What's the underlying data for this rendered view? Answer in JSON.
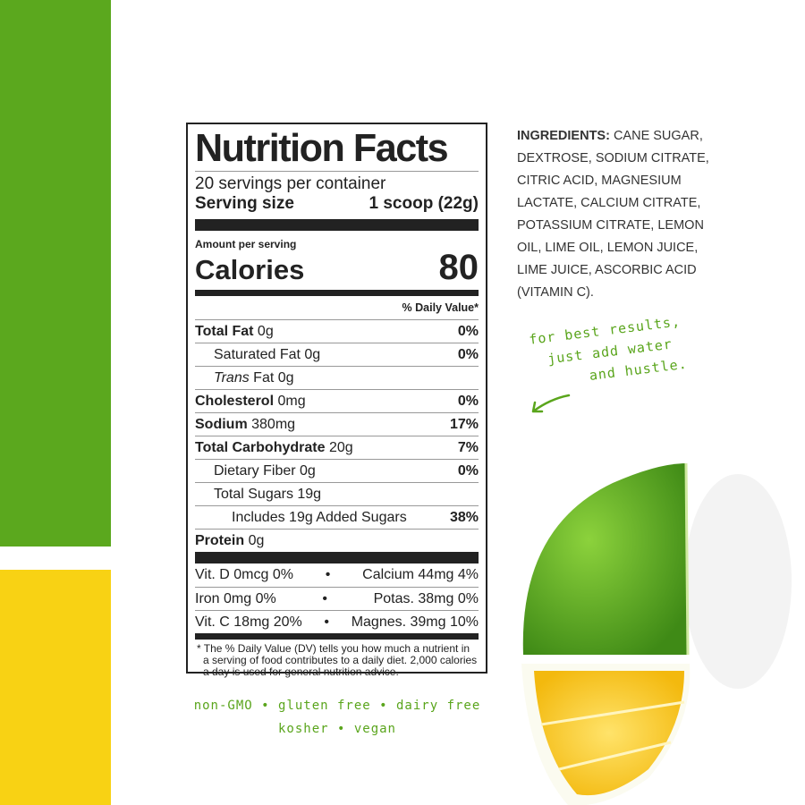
{
  "colors": {
    "green": "#5ba81e",
    "yellow": "#f8d214",
    "handwriting": "#5aa51c"
  },
  "label": {
    "title": "Nutrition Facts",
    "servings": "20 servings per container",
    "serving_size_label": "Serving size",
    "serving_size_value": "1 scoop (22g)",
    "amount_per_serving": "Amount per serving",
    "calories_label": "Calories",
    "calories_value": "80",
    "daily_value_header": "% Daily Value*",
    "rows": [
      {
        "bold": "Total Fat",
        "amount": " 0g",
        "dv": "0%"
      },
      {
        "bold": "",
        "amount": "Saturated Fat 0g",
        "dv": "0%"
      },
      {
        "italic": "Trans",
        "amount": " Fat 0g",
        "dv": ""
      },
      {
        "bold": "Cholesterol",
        "amount": " 0mg",
        "dv": "0%"
      },
      {
        "bold": "Sodium",
        "amount": " 380mg",
        "dv": "17%"
      },
      {
        "bold": "Total Carbohydrate",
        "amount": " 20g",
        "dv": "7%"
      },
      {
        "bold": "",
        "amount": "Dietary Fiber 0g",
        "dv": "0%"
      },
      {
        "bold": "",
        "amount": "Total Sugars 19g",
        "dv": ""
      },
      {
        "bold": "",
        "amount": "Includes 19g Added Sugars",
        "dv": "38%"
      },
      {
        "bold": "Protein",
        "amount": " 0g",
        "dv": ""
      }
    ],
    "vitamins": [
      {
        "left": "Vit. D 0mcg 0%",
        "sep": "•",
        "right": "Calcium 44mg 4%"
      },
      {
        "left": "Iron 0mg 0%",
        "sep": "•",
        "right": "Potas. 38mg 0%"
      },
      {
        "left": "Vit. C 18mg 20%",
        "sep": "•",
        "right": "Magnes. 39mg 10%"
      }
    ],
    "footnote": "* The % Daily Value (DV) tells you how much a nutrient in a serving of food contributes to a daily diet. 2,000 calories a day is used for general nutrition advice."
  },
  "ingredients": {
    "heading": "INGREDIENTS:",
    "text": " CANE SUGAR, DEXTROSE, SODIUM CITRATE, CITRIC ACID, MAGNESIUM LACTATE, CALCIUM CITRATE, POTASSIUM CITRATE, LEMON OIL, LIME OIL, LEMON JUICE, LIME JUICE, ASCORBIC ACID (VITAMIN C)."
  },
  "note": {
    "line1": "for best results,",
    "line2": "just add water",
    "line3": "and hustle."
  },
  "claims": {
    "line1": "non-GMO • gluten free • dairy free",
    "line2": "kosher • vegan"
  }
}
